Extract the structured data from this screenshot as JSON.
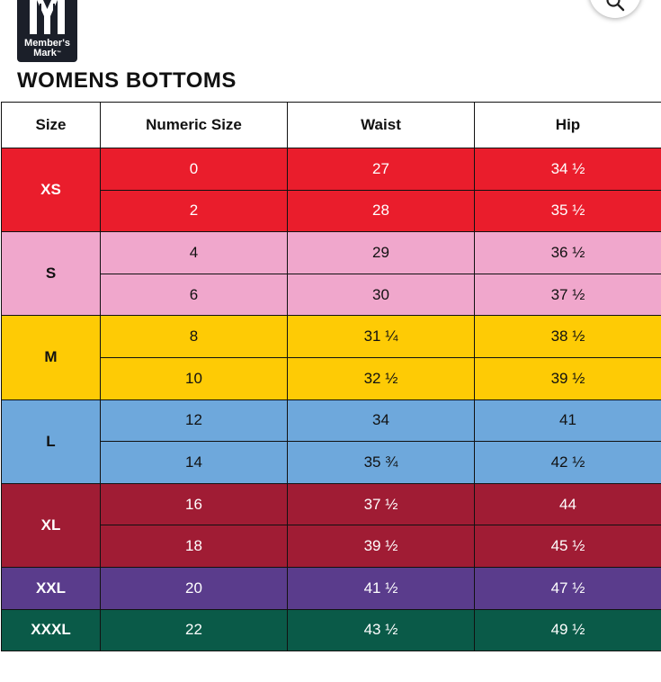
{
  "brand": {
    "line1": "Member's",
    "line2": "Mark",
    "trademark": "™"
  },
  "page": {
    "title": "WOMENS BOTTOMS"
  },
  "chart": {
    "headers": [
      "Size",
      "Numeric Size",
      "Waist",
      "Hip"
    ],
    "groups": [
      {
        "size": "XS",
        "color": "#ea1d2c",
        "text_color": "#ffffff",
        "rows": [
          {
            "numeric": "0",
            "waist": "27",
            "hip": "34 ½"
          },
          {
            "numeric": "2",
            "waist": "28",
            "hip": "35 ½"
          }
        ]
      },
      {
        "size": "S",
        "color": "#f0a7cc",
        "text_color": "#111111",
        "rows": [
          {
            "numeric": "4",
            "waist": "29",
            "hip": "36 ½"
          },
          {
            "numeric": "6",
            "waist": "30",
            "hip": "37 ½"
          }
        ]
      },
      {
        "size": "M",
        "color": "#fecb05",
        "text_color": "#111111",
        "rows": [
          {
            "numeric": "8",
            "waist": "31 ¼",
            "hip": "38 ½"
          },
          {
            "numeric": "10",
            "waist": "32 ½",
            "hip": "39 ½"
          }
        ]
      },
      {
        "size": "L",
        "color": "#6ea8dc",
        "text_color": "#111111",
        "rows": [
          {
            "numeric": "12",
            "waist": "34",
            "hip": "41"
          },
          {
            "numeric": "14",
            "waist": "35 ¾",
            "hip": "42 ½"
          }
        ]
      },
      {
        "size": "XL",
        "color": "#a01c34",
        "text_color": "#ffffff",
        "rows": [
          {
            "numeric": "16",
            "waist": "37 ½",
            "hip": "44"
          },
          {
            "numeric": "18",
            "waist": "39 ½",
            "hip": "45 ½"
          }
        ]
      },
      {
        "size": "XXL",
        "color": "#5a3c8c",
        "text_color": "#ffffff",
        "rows": [
          {
            "numeric": "20",
            "waist": "41 ½",
            "hip": "47 ½"
          }
        ]
      },
      {
        "size": "XXXL",
        "color": "#0a5a48",
        "text_color": "#ffffff",
        "rows": [
          {
            "numeric": "22",
            "waist": "43 ½",
            "hip": "49 ½"
          }
        ]
      }
    ]
  },
  "icons": {
    "logo": "members-mark-logo-icon",
    "search": "search-icon"
  }
}
